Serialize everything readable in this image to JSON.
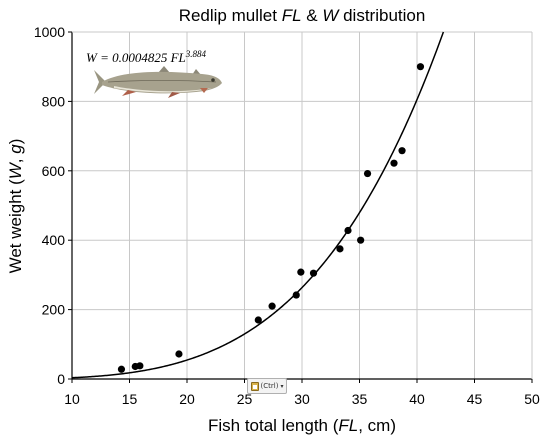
{
  "chart_data": {
    "type": "scatter",
    "title": {
      "parts": [
        "Redlip mullet ",
        "FL",
        " & ",
        "W",
        " distribution"
      ],
      "italic": [
        false,
        true,
        false,
        true,
        false
      ]
    },
    "xlabel": {
      "parts": [
        "Fish total length (",
        "FL",
        ", cm)"
      ],
      "italic": [
        false,
        true,
        false
      ]
    },
    "ylabel": {
      "parts": [
        "Wet weight (",
        "W",
        ", ",
        "g",
        ")"
      ],
      "italic": [
        false,
        true,
        false,
        true,
        false
      ]
    },
    "xlim": [
      10,
      50
    ],
    "ylim": [
      0,
      1000
    ],
    "x_ticks": [
      10,
      15,
      20,
      25,
      30,
      35,
      40,
      45,
      50
    ],
    "y_ticks": [
      0,
      200,
      400,
      600,
      800,
      1000
    ],
    "grid": true,
    "points": [
      {
        "x": 14.3,
        "y": 28
      },
      {
        "x": 15.5,
        "y": 36
      },
      {
        "x": 15.9,
        "y": 38
      },
      {
        "x": 19.3,
        "y": 72
      },
      {
        "x": 26.2,
        "y": 170
      },
      {
        "x": 27.4,
        "y": 210
      },
      {
        "x": 29.5,
        "y": 242
      },
      {
        "x": 29.9,
        "y": 308
      },
      {
        "x": 31.0,
        "y": 305
      },
      {
        "x": 33.3,
        "y": 375
      },
      {
        "x": 34.0,
        "y": 428
      },
      {
        "x": 35.1,
        "y": 400
      },
      {
        "x": 35.7,
        "y": 592
      },
      {
        "x": 38.0,
        "y": 622
      },
      {
        "x": 38.7,
        "y": 658
      },
      {
        "x": 40.3,
        "y": 900
      }
    ],
    "fit": {
      "type": "power",
      "a": 0.0004825,
      "b": 3.884
    },
    "equation": {
      "text": "W = 0.0004825 FL",
      "exponent": "3.884"
    }
  },
  "colors": {
    "points": "#000000",
    "curve": "#000000",
    "grid": "#c8c8c8",
    "axis": "#000000"
  },
  "image": {
    "name": "redlip-mullet-fish"
  },
  "paste_options": {
    "label": "(Ctrl)",
    "icon": "clipboard-icon"
  }
}
